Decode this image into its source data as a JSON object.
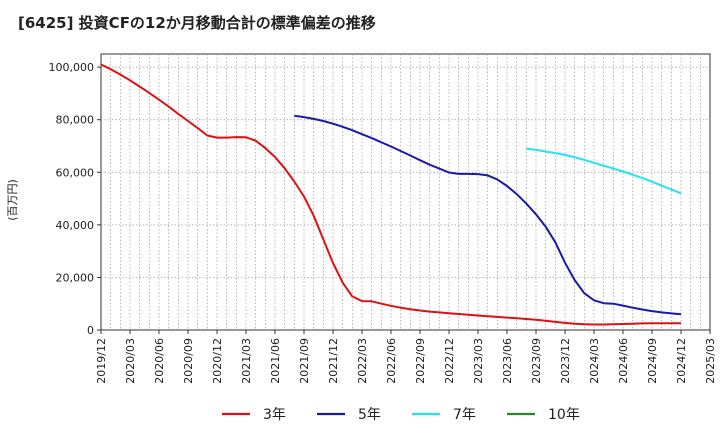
{
  "chart_data": {
    "type": "line",
    "title": "[6425]  投資CFの12か月移動合計の標準偏差の推移",
    "ylabel": "(百万円)",
    "xlabel": "",
    "ylim": [
      0,
      105000
    ],
    "yticks": [
      0,
      20000,
      40000,
      60000,
      80000,
      100000
    ],
    "ytick_labels": [
      "0",
      "20,000",
      "40,000",
      "60,000",
      "80,000",
      "100,000"
    ],
    "xticks": [
      "2019/12",
      "2020/03",
      "2020/06",
      "2020/09",
      "2020/12",
      "2021/03",
      "2021/06",
      "2021/09",
      "2021/12",
      "2022/03",
      "2022/06",
      "2022/09",
      "2022/12",
      "2023/03",
      "2023/06",
      "2023/09",
      "2023/12",
      "2024/03",
      "2024/06",
      "2024/09",
      "2024/12",
      "2025/03"
    ],
    "grid": true,
    "legend_position": "bottom",
    "series": [
      {
        "name": "3年",
        "color": "#dd1111",
        "x": [
          "2019/12",
          "2020/01",
          "2020/02",
          "2020/03",
          "2020/04",
          "2020/05",
          "2020/06",
          "2020/07",
          "2020/08",
          "2020/09",
          "2020/10",
          "2020/11",
          "2020/12",
          "2021/01",
          "2021/02",
          "2021/03",
          "2021/04",
          "2021/05",
          "2021/06",
          "2021/07",
          "2021/08",
          "2021/09",
          "2021/10",
          "2021/11",
          "2021/12",
          "2022/01",
          "2022/02",
          "2022/03",
          "2022/04",
          "2022/05",
          "2022/06",
          "2022/07",
          "2022/08",
          "2022/09",
          "2022/10",
          "2022/11",
          "2022/12",
          "2023/01",
          "2023/02",
          "2023/03",
          "2023/04",
          "2023/05",
          "2023/06",
          "2023/07",
          "2023/08",
          "2023/09",
          "2023/10",
          "2023/11",
          "2023/12",
          "2024/01",
          "2024/02",
          "2024/03",
          "2024/04",
          "2024/05",
          "2024/06",
          "2024/07",
          "2024/08",
          "2024/09",
          "2024/10",
          "2024/11",
          "2024/12"
        ],
        "values": [
          101000,
          99200,
          97200,
          95000,
          92600,
          90200,
          87600,
          85000,
          82200,
          79500,
          76800,
          74000,
          73200,
          73200,
          73400,
          73300,
          72000,
          69200,
          65800,
          61500,
          56500,
          50800,
          43500,
          34500,
          25500,
          18000,
          12800,
          11000,
          10900,
          10000,
          9200,
          8500,
          7900,
          7400,
          7000,
          6700,
          6400,
          6100,
          5800,
          5500,
          5200,
          5000,
          4700,
          4500,
          4200,
          3900,
          3500,
          3100,
          2700,
          2400,
          2200,
          2100,
          2100,
          2200,
          2300,
          2400,
          2500,
          2600,
          2600,
          2600,
          2600
        ]
      },
      {
        "name": "5年",
        "color": "#1a1aaa",
        "x": [
          "2021/08",
          "2021/09",
          "2021/10",
          "2021/11",
          "2021/12",
          "2022/01",
          "2022/02",
          "2022/03",
          "2022/04",
          "2022/05",
          "2022/06",
          "2022/07",
          "2022/08",
          "2022/09",
          "2022/10",
          "2022/11",
          "2022/12",
          "2023/01",
          "2023/02",
          "2023/03",
          "2023/04",
          "2023/05",
          "2023/06",
          "2023/07",
          "2023/08",
          "2023/09",
          "2023/10",
          "2023/11",
          "2023/12",
          "2024/01",
          "2024/02",
          "2024/03",
          "2024/04",
          "2024/05",
          "2024/06",
          "2024/07",
          "2024/08",
          "2024/09",
          "2024/10",
          "2024/11",
          "2024/12"
        ],
        "values": [
          81500,
          81000,
          80300,
          79500,
          78500,
          77300,
          76000,
          74500,
          73000,
          71400,
          69800,
          68100,
          66400,
          64600,
          62900,
          61400,
          59900,
          59400,
          59400,
          59300,
          58800,
          57300,
          54800,
          51700,
          48100,
          44000,
          39300,
          33400,
          25600,
          19000,
          14000,
          11300,
          10200,
          10000,
          9300,
          8500,
          7800,
          7200,
          6700,
          6300,
          6000
        ]
      },
      {
        "name": "7年",
        "color": "#22e5f0",
        "x": [
          "2023/08",
          "2023/09",
          "2023/10",
          "2023/11",
          "2023/12",
          "2024/01",
          "2024/02",
          "2024/03",
          "2024/04",
          "2024/05",
          "2024/06",
          "2024/07",
          "2024/08",
          "2024/09",
          "2024/10",
          "2024/11",
          "2024/12"
        ],
        "values": [
          69000,
          68500,
          67900,
          67300,
          66600,
          65700,
          64700,
          63600,
          62500,
          61400,
          60300,
          59100,
          57800,
          56400,
          54900,
          53500,
          52000
        ]
      },
      {
        "name": "10年",
        "color": "#228b22",
        "x": [],
        "values": []
      }
    ]
  }
}
